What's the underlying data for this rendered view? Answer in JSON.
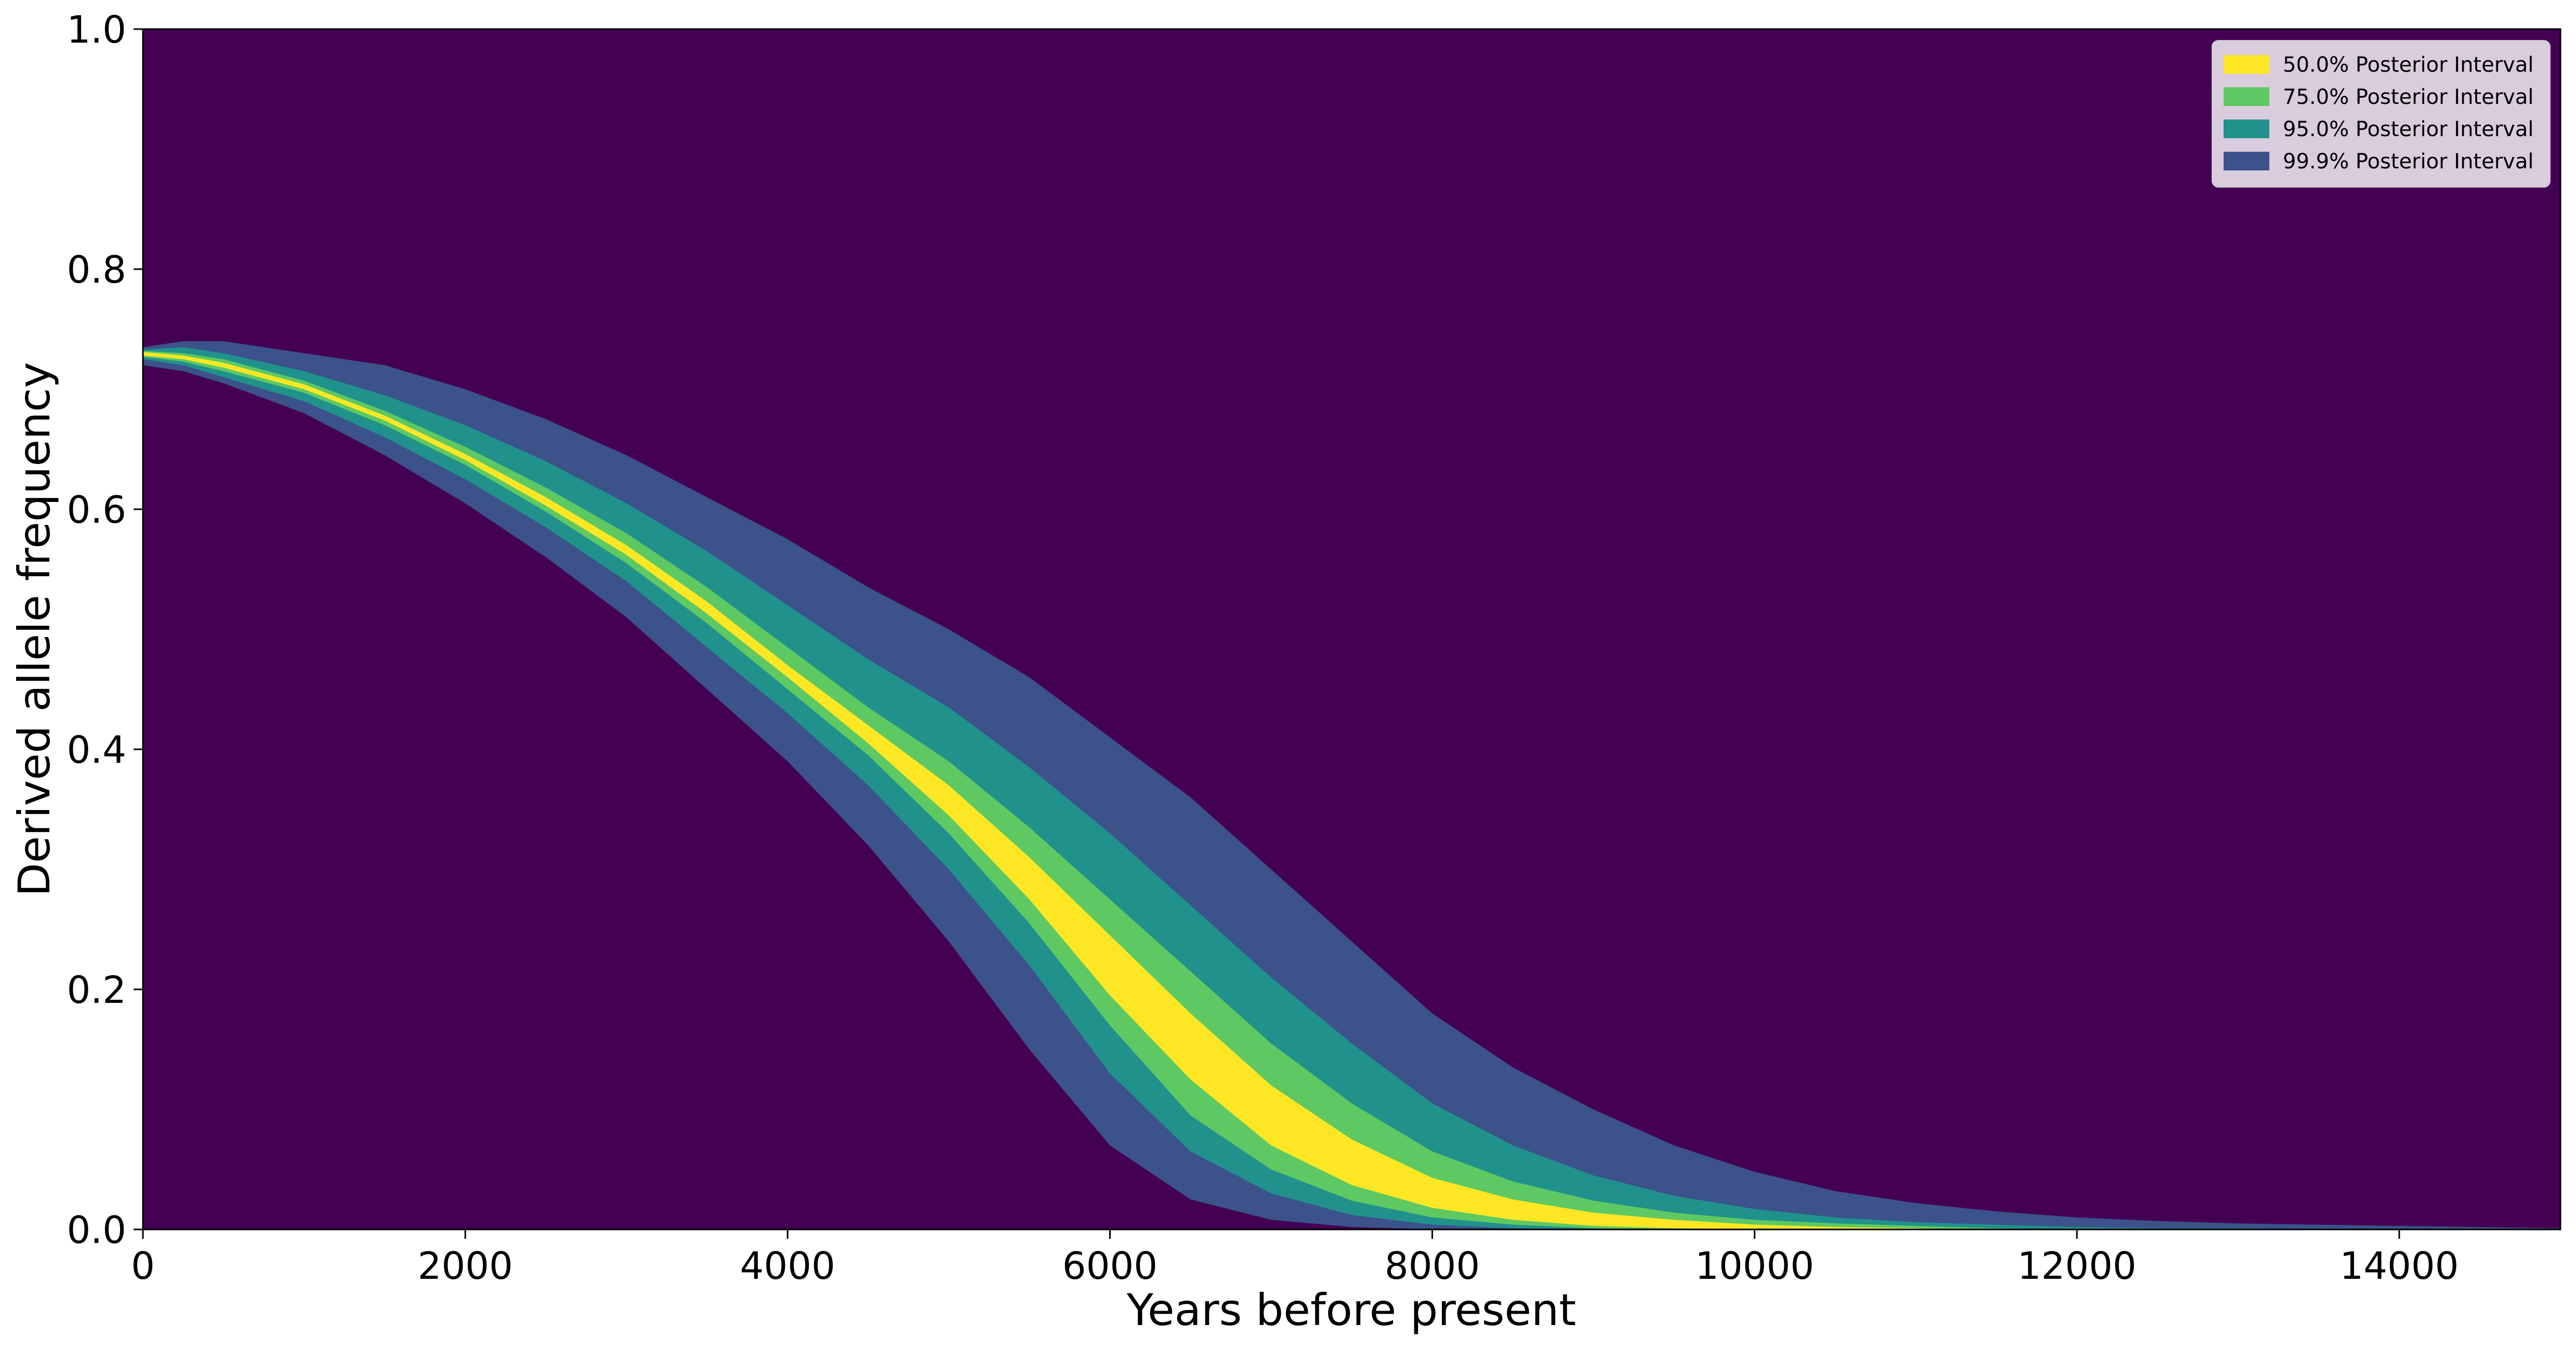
{
  "chart_data": {
    "type": "area",
    "xlabel": "Years before present",
    "ylabel": "Derived allele frequency",
    "xlim": [
      0,
      15000
    ],
    "ylim": [
      0,
      1
    ],
    "xticks": [
      "0",
      "2000",
      "4000",
      "6000",
      "8000",
      "10000",
      "12000",
      "14000"
    ],
    "yticks": [
      "0.0",
      "0.2",
      "0.4",
      "0.6",
      "0.8",
      "1.0"
    ],
    "grid": false,
    "legend_position": "top-right",
    "background_color": "#440154",
    "x": [
      0,
      250,
      500,
      1000,
      1500,
      2000,
      2500,
      3000,
      3500,
      4000,
      4500,
      5000,
      5500,
      6000,
      6500,
      7000,
      7500,
      8000,
      8500,
      9000,
      9500,
      10000,
      10500,
      11000,
      11500,
      12000,
      12500,
      13000,
      13500,
      14000,
      14500,
      15000
    ],
    "series": [
      {
        "name": "99.9% Posterior Interval",
        "color": "#3b528b",
        "upper": [
          0.735,
          0.74,
          0.74,
          0.73,
          0.72,
          0.7,
          0.675,
          0.645,
          0.61,
          0.575,
          0.535,
          0.5,
          0.46,
          0.41,
          0.36,
          0.3,
          0.24,
          0.18,
          0.135,
          0.1,
          0.07,
          0.048,
          0.032,
          0.022,
          0.015,
          0.01,
          0.007,
          0.005,
          0.004,
          0.003,
          0.002,
          0.001
        ],
        "lower": [
          0.72,
          0.715,
          0.705,
          0.68,
          0.645,
          0.605,
          0.56,
          0.51,
          0.45,
          0.39,
          0.32,
          0.24,
          0.15,
          0.07,
          0.025,
          0.008,
          0.002,
          0,
          0,
          0,
          0,
          0,
          0,
          0,
          0,
          0,
          0,
          0,
          0,
          0,
          0,
          0
        ]
      },
      {
        "name": "95.0% Posterior Interval",
        "color": "#21918c",
        "upper": [
          0.733,
          0.735,
          0.73,
          0.715,
          0.695,
          0.67,
          0.64,
          0.605,
          0.565,
          0.52,
          0.475,
          0.435,
          0.385,
          0.33,
          0.27,
          0.21,
          0.155,
          0.105,
          0.07,
          0.045,
          0.028,
          0.017,
          0.01,
          0.006,
          0.004,
          0.002,
          0.001,
          0.001,
          0,
          0,
          0,
          0
        ],
        "lower": [
          0.725,
          0.72,
          0.71,
          0.69,
          0.66,
          0.625,
          0.585,
          0.54,
          0.485,
          0.43,
          0.37,
          0.3,
          0.22,
          0.13,
          0.065,
          0.03,
          0.012,
          0.004,
          0.001,
          0,
          0,
          0,
          0,
          0,
          0,
          0,
          0,
          0,
          0,
          0,
          0,
          0
        ]
      },
      {
        "name": "75.0% Posterior Interval",
        "color": "#5ec962",
        "upper": [
          0.732,
          0.73,
          0.725,
          0.707,
          0.682,
          0.652,
          0.618,
          0.58,
          0.535,
          0.485,
          0.435,
          0.39,
          0.335,
          0.275,
          0.215,
          0.155,
          0.105,
          0.065,
          0.04,
          0.024,
          0.014,
          0.008,
          0.005,
          0.003,
          0.001,
          0,
          0,
          0,
          0,
          0,
          0,
          0
        ],
        "lower": [
          0.727,
          0.723,
          0.715,
          0.697,
          0.67,
          0.637,
          0.598,
          0.555,
          0.505,
          0.45,
          0.395,
          0.33,
          0.255,
          0.17,
          0.095,
          0.05,
          0.024,
          0.01,
          0.004,
          0.001,
          0,
          0,
          0,
          0,
          0,
          0,
          0,
          0,
          0,
          0,
          0,
          0
        ]
      },
      {
        "name": "50.0% Posterior Interval",
        "color": "#fde725",
        "upper": [
          0.731,
          0.728,
          0.722,
          0.704,
          0.678,
          0.646,
          0.61,
          0.57,
          0.523,
          0.47,
          0.42,
          0.37,
          0.31,
          0.245,
          0.18,
          0.12,
          0.075,
          0.043,
          0.025,
          0.014,
          0.008,
          0.004,
          0.002,
          0.001,
          0,
          0,
          0,
          0,
          0,
          0,
          0,
          0
        ],
        "lower": [
          0.728,
          0.725,
          0.718,
          0.7,
          0.674,
          0.641,
          0.603,
          0.562,
          0.513,
          0.46,
          0.405,
          0.345,
          0.275,
          0.195,
          0.125,
          0.07,
          0.037,
          0.018,
          0.008,
          0.003,
          0.001,
          0,
          0,
          0,
          0,
          0,
          0,
          0,
          0,
          0,
          0,
          0
        ]
      }
    ]
  }
}
